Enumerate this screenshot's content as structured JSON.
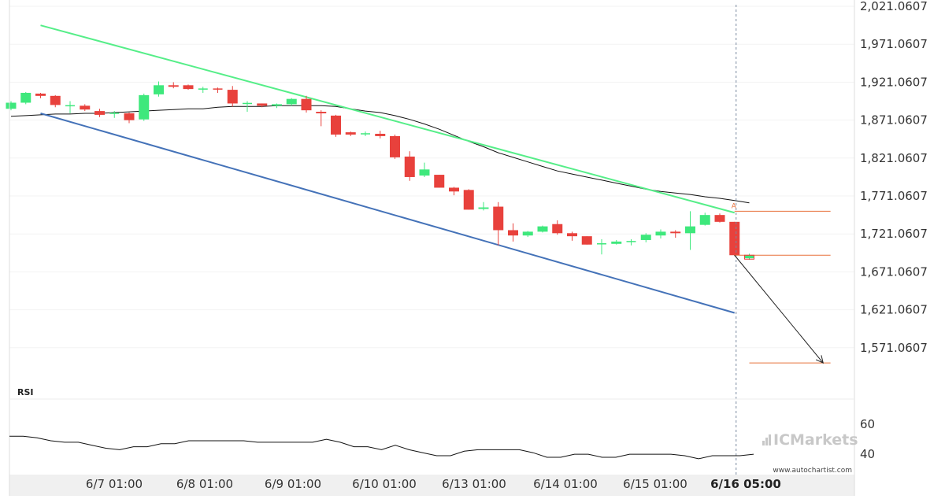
{
  "chart_data": {
    "type": "candlestick",
    "price_axis": {
      "range": [
        1521.0607,
        2021.0607
      ],
      "ticks": [
        "2,021.0607",
        "1,971.0607",
        "1,921.0607",
        "1,871.0607",
        "1,821.0607",
        "1,771.0607",
        "1,721.0607",
        "1,671.0607",
        "1,621.0607",
        "1,571.0607"
      ]
    },
    "time_axis": {
      "labels": [
        "6/7 01:00",
        "6/8 01:00",
        "6/9 01:00",
        "6/10 01:00",
        "6/13 01:00",
        "6/14 01:00",
        "6/15 01:00",
        "6/16 05:00"
      ],
      "highlighted": "6/16 05:00"
    },
    "candles": [
      [
        1886,
        1894,
        1884,
        1896
      ],
      [
        1894,
        1907,
        1892,
        1908
      ],
      [
        1906,
        1903,
        1900,
        1907
      ],
      [
        1903,
        1891,
        1888,
        1904
      ],
      [
        1890,
        1890,
        1880,
        1896
      ],
      [
        1890,
        1885,
        1883,
        1892
      ],
      [
        1883,
        1878,
        1875,
        1886
      ],
      [
        1879,
        1880,
        1874,
        1883
      ],
      [
        1880,
        1871,
        1867,
        1881
      ],
      [
        1872,
        1904,
        1870,
        1906
      ],
      [
        1905,
        1917,
        1902,
        1922
      ],
      [
        1917,
        1915,
        1913,
        1921
      ],
      [
        1917,
        1912,
        1911,
        1918
      ],
      [
        1912,
        1912,
        1907,
        1915
      ],
      [
        1912,
        1911,
        1907,
        1914
      ],
      [
        1911,
        1893,
        1889,
        1916
      ],
      [
        1893,
        1893,
        1882,
        1896
      ],
      [
        1893,
        1890,
        1888,
        1893
      ],
      [
        1890,
        1892,
        1887,
        1893
      ],
      [
        1892,
        1899,
        1890,
        1900
      ],
      [
        1899,
        1884,
        1881,
        1903
      ],
      [
        1882,
        1880,
        1863,
        1884
      ],
      [
        1877,
        1852,
        1849,
        1878
      ],
      [
        1855,
        1852,
        1850,
        1856
      ],
      [
        1853,
        1853,
        1850,
        1856
      ],
      [
        1853,
        1850,
        1847,
        1857
      ],
      [
        1850,
        1822,
        1820,
        1852
      ],
      [
        1823,
        1796,
        1791,
        1830
      ],
      [
        1798,
        1806,
        1796,
        1815
      ],
      [
        1799,
        1782,
        1782,
        1799
      ],
      [
        1782,
        1777,
        1772,
        1783
      ],
      [
        1779,
        1753,
        1753,
        1780
      ],
      [
        1754,
        1756,
        1752,
        1763
      ],
      [
        1757,
        1726,
        1706,
        1763
      ],
      [
        1726,
        1719,
        1711,
        1735
      ],
      [
        1719,
        1724,
        1717,
        1725
      ],
      [
        1724,
        1731,
        1723,
        1732
      ],
      [
        1734,
        1722,
        1720,
        1739
      ],
      [
        1722,
        1718,
        1712,
        1724
      ],
      [
        1718,
        1707,
        1707,
        1718
      ],
      [
        1708,
        1708,
        1694,
        1714
      ],
      [
        1708,
        1711,
        1707,
        1713
      ],
      [
        1711,
        1711,
        1706,
        1714
      ],
      [
        1713,
        1720,
        1710,
        1722
      ],
      [
        1719,
        1724,
        1715,
        1727
      ],
      [
        1724,
        1722,
        1716,
        1726
      ],
      [
        1722,
        1731,
        1700,
        1751
      ],
      [
        1733,
        1746,
        1732,
        1749
      ],
      [
        1746,
        1737,
        1736,
        1748
      ],
      [
        1737,
        1693,
        1692,
        1737
      ],
      [
        1689,
        1693,
        1687,
        1695
      ]
    ],
    "moving_average": [
      1876,
      1877,
      1878,
      1879,
      1879,
      1880,
      1880,
      1881,
      1882,
      1883,
      1884,
      1885,
      1886,
      1886,
      1888,
      1889,
      1889,
      1889,
      1890,
      1890,
      1890,
      1890,
      1889,
      1886,
      1883,
      1881,
      1877,
      1872,
      1866,
      1859,
      1851,
      1843,
      1836,
      1828,
      1822,
      1816,
      1810,
      1804,
      1800,
      1796,
      1792,
      1788,
      1784,
      1780,
      1777,
      1775,
      1773,
      1770,
      1768,
      1765,
      1762
    ],
    "trendlines": [
      {
        "color": "#55ee88",
        "from": [
          2,
          1996
        ],
        "to": [
          49,
          1749
        ]
      },
      {
        "color": "#4472b8",
        "from": [
          2,
          1880
        ],
        "to": [
          49,
          1617
        ]
      }
    ],
    "levels": [
      {
        "color": "#e8703a",
        "value": 1751,
        "from": 49,
        "to": 55.5
      },
      {
        "color": "#e8703a",
        "value": 1693,
        "from": 49,
        "to": 55.5
      },
      {
        "color": "#e8703a",
        "value": 1551,
        "from": 50,
        "to": 55.5
      }
    ],
    "forecast_arrow": {
      "from": [
        49,
        1693
      ],
      "to": [
        55,
        1551
      ]
    },
    "marker_label": "A",
    "rsi": {
      "title": "RSI",
      "ticks": [
        60,
        40
      ],
      "range": [
        28,
        70
      ],
      "values": [
        52,
        52,
        51,
        49,
        48,
        48,
        46,
        44,
        43,
        45,
        45,
        47,
        47,
        49,
        49,
        49,
        49,
        49,
        48,
        48,
        48,
        48,
        48,
        50,
        48,
        45,
        45,
        43,
        46,
        43,
        41,
        39,
        39,
        42,
        43,
        43,
        43,
        43,
        41,
        38,
        38,
        40,
        40,
        38,
        38,
        40,
        40,
        40,
        40,
        39,
        37,
        39,
        39,
        39,
        40
      ]
    },
    "watermark": "www.autochartist.com",
    "brand": "ICMarkets"
  }
}
